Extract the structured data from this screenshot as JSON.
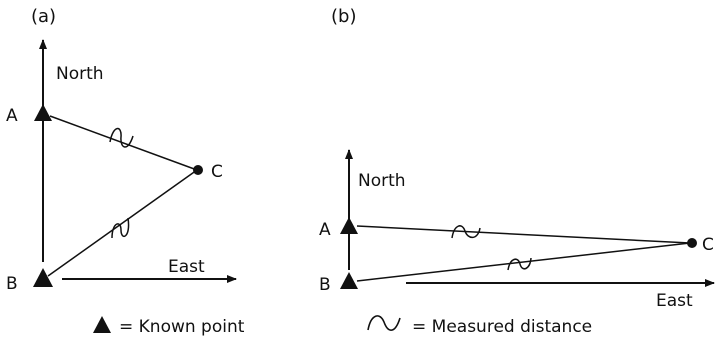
{
  "panel_a": {
    "label": "(a)",
    "north_label": "North",
    "east_label": "East",
    "point_a": "A",
    "point_b": "B",
    "point_c": "C"
  },
  "panel_b": {
    "label": "(b)",
    "north_label": "North",
    "east_label": "East",
    "point_a": "A",
    "point_b": "B",
    "point_c": "C"
  },
  "legend": {
    "known_point": "=  Known point",
    "measured_distance": "=  Measured distance"
  },
  "colors": {
    "ink": "#111111",
    "background": "#ffffff"
  }
}
